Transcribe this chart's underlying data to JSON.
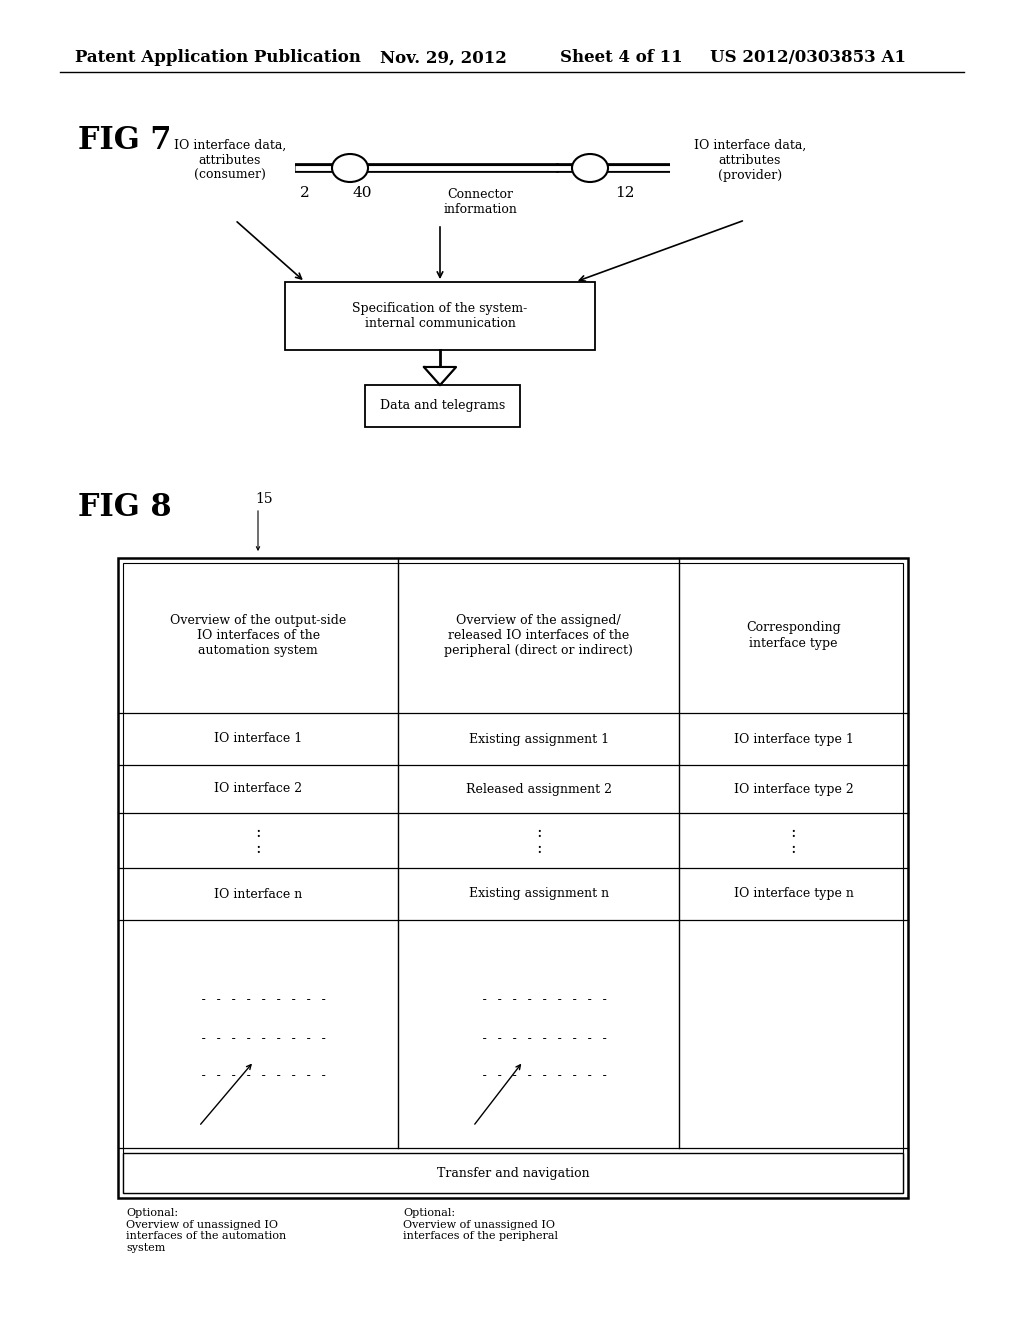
{
  "bg_color": "#ffffff",
  "header_text": "Patent Application Publication",
  "header_date": "Nov. 29, 2012",
  "header_sheet": "Sheet 4 of 11",
  "header_patent": "US 2012/0303853 A1",
  "fig7_label": "FIG 7",
  "fig8_label": "FIG 8",
  "label_2": "2",
  "label_40": "40",
  "label_12": "12",
  "label_15": "15",
  "text_io_consumer": "IO interface data,\nattributes\n(consumer)",
  "text_io_provider": "IO interface data,\nattributes\n(provider)",
  "text_connector": "Connector\ninformation",
  "text_spec": "Specification of the system-\ninternal communication",
  "text_datatel": "Data and telegrams",
  "col1_header": "Overview of the output-side\nIO interfaces of the\nautomation system",
  "col2_header": "Overview of the assigned/\nreleased IO interfaces of the\nperipheral (direct or indirect)",
  "col3_header": "Corresponding\ninterface type",
  "row1_col1": "IO interface 1",
  "row1_col2": "Existing assignment 1",
  "row1_col3": "IO interface type 1",
  "row2_col1": "IO interface 2",
  "row2_col2": "Released assignment 2",
  "row2_col3": "IO interface type 2",
  "rown_col1": "IO interface n",
  "rown_col2": "Existing assignment n",
  "rown_col3": "IO interface type n",
  "nav_text": "Transfer and navigation",
  "opt1_text": "Optional:\nOverview of unassigned IO\ninterfaces of the automation\nsystem",
  "opt2_text": "Optional:\nOverview of unassigned IO\ninterfaces of the peripheral"
}
